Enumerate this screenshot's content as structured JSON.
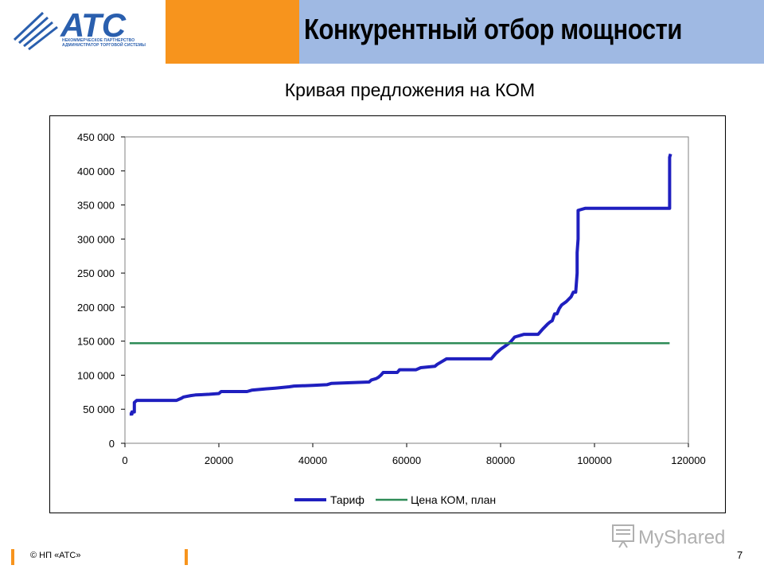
{
  "header": {
    "title": "Конкурентный отбор мощности",
    "logo_text": "АТС",
    "logo_sub": "НЕКОММЕРЧЕСКОЕ ПАРТНЕРСТВО АДМИНИСТРАТОР ТОРГОВОЙ СИСТЕМЫ"
  },
  "colors": {
    "header_blue": "#9fb9e3",
    "accent_orange": "#f7941d",
    "series_tariff": "#1f1fbf",
    "series_price": "#2e8b57"
  },
  "chart_data": {
    "type": "line",
    "title": "Кривая предложения на КОМ",
    "xlim": [
      0,
      120000
    ],
    "ylim": [
      0,
      450000
    ],
    "x_ticks": [
      "0",
      "20000",
      "40000",
      "60000",
      "80000",
      "100000",
      "120000"
    ],
    "y_ticks": [
      "0",
      "50 000",
      "100 000",
      "150 000",
      "200 000",
      "250 000",
      "300 000",
      "350 000",
      "400 000",
      "450 000"
    ],
    "grid": false,
    "legend_position": "bottom",
    "series": [
      {
        "name": "Тариф",
        "x": [
          1000,
          1500,
          1500,
          2000,
          2000,
          2500,
          2500,
          11000,
          12000,
          12500,
          14000,
          15000,
          18000,
          20000,
          20500,
          26000,
          27000,
          30000,
          32000,
          35000,
          36000,
          40000,
          43000,
          44000,
          48000,
          52000,
          52500,
          53500,
          54000,
          54500,
          55000,
          58000,
          58500,
          62000,
          63000,
          66000,
          66500,
          67500,
          68500,
          70000,
          78000,
          79000,
          80000,
          81000,
          82000,
          82500,
          83000,
          84000,
          85000,
          88000,
          89000,
          90000,
          90500,
          91000,
          91500,
          92000,
          92500,
          93000,
          94000,
          95000,
          95500,
          96000,
          96300,
          96300,
          96500,
          96500,
          97000,
          98000,
          100000,
          110000,
          116000,
          116000,
          116200
        ],
        "y": [
          43000,
          43000,
          46000,
          46000,
          60000,
          63000,
          63000,
          63000,
          66000,
          68000,
          70000,
          71000,
          72000,
          73000,
          76000,
          76000,
          78000,
          80000,
          81000,
          83000,
          84000,
          85000,
          86000,
          88000,
          89000,
          90000,
          93000,
          95000,
          97000,
          100000,
          104000,
          104000,
          108000,
          108000,
          111000,
          113000,
          116000,
          120000,
          124000,
          124000,
          124000,
          132000,
          138000,
          143000,
          148000,
          152000,
          156000,
          158000,
          160000,
          160000,
          168000,
          175000,
          178000,
          180000,
          190000,
          190000,
          198000,
          203000,
          208000,
          215000,
          222000,
          222000,
          250000,
          280000,
          300000,
          342000,
          343000,
          345000,
          345000,
          345000,
          345000,
          420000,
          425000
        ]
      },
      {
        "name": "Цена КОМ, план",
        "x": [
          1000,
          116000
        ],
        "y": [
          147000,
          147000
        ]
      }
    ]
  },
  "footer": {
    "copyright": "© НП «АТС»",
    "page_number": "7"
  },
  "watermark": {
    "text": "MyShared"
  }
}
